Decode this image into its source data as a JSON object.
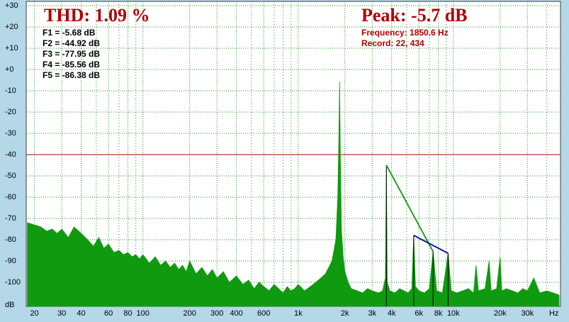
{
  "chart_data": {
    "type": "area",
    "title": "THD: 1.09 %",
    "peak_label": "Peak: -5.7 dB",
    "info": [
      "Frequency: 1850.6 Hz",
      "Record: 22,  434"
    ],
    "y_label": "dB",
    "x_label": "Hz",
    "log_x": true,
    "grid": true,
    "xlim": [
      17.7,
      49000
    ],
    "ylim": [
      -110,
      32
    ],
    "yticks": [
      {
        "value": 30,
        "label": "+30"
      },
      {
        "value": 20,
        "label": "+20"
      },
      {
        "value": 10,
        "label": "+10"
      },
      {
        "value": 0,
        "label": "+0"
      },
      -10,
      -20,
      -30,
      -40,
      -50,
      -60,
      -70,
      -80,
      -90,
      -100
    ],
    "xticks": [
      20,
      30,
      40,
      60,
      80,
      100,
      200,
      300,
      400,
      600,
      {
        "value": 1000,
        "label": "1k"
      },
      {
        "value": 2000,
        "label": "2k"
      },
      {
        "value": 3000,
        "label": "3k"
      },
      {
        "value": 4000,
        "label": "4k"
      },
      {
        "value": 6000,
        "label": "6k"
      },
      {
        "value": 8000,
        "label": "8k"
      },
      {
        "value": 10000,
        "label": "10k"
      },
      {
        "value": 20000,
        "label": "20k"
      },
      {
        "value": 30000,
        "label": "30k"
      }
    ],
    "xminor": [
      50,
      70,
      90,
      500,
      700,
      800,
      900,
      5000,
      7000,
      9000,
      40000
    ],
    "reference_line": -40,
    "reference_color": "#a00000",
    "series": [
      {
        "color": "#109a10",
        "x": [
          18,
          20,
          22,
          24,
          26,
          28,
          30,
          33,
          36,
          40,
          44,
          48,
          52,
          56,
          60,
          65,
          70,
          75,
          80,
          85,
          90,
          95,
          100,
          110,
          120,
          130,
          140,
          150,
          160,
          170,
          180,
          190,
          200,
          220,
          240,
          260,
          280,
          300,
          330,
          360,
          400,
          440,
          480,
          520,
          560,
          600,
          650,
          700,
          750,
          800,
          850,
          900,
          950,
          1000,
          1100,
          1200,
          1300,
          1400,
          1500,
          1600,
          1650,
          1700,
          1750,
          1800,
          1830,
          1850.6,
          1870,
          1900,
          1950,
          2000,
          2100,
          2200,
          2400,
          2600,
          2800,
          3000,
          3300,
          3500,
          3650,
          3701,
          3750,
          3900,
          4200,
          4500,
          4800,
          5100,
          5400,
          5552,
          5700,
          6000,
          6500,
          7000,
          7402,
          7800,
          8500,
          9253,
          9700,
          10500,
          11500,
          12500,
          13500,
          14000,
          14500,
          16000,
          17000,
          17500,
          19000,
          20000,
          20500,
          22000,
          24000,
          26000,
          28000,
          30000,
          33000,
          36000,
          40000,
          44000,
          48000
        ],
        "values": [
          -72,
          -73,
          -74,
          -76,
          -75,
          -77,
          -75,
          -79,
          -74,
          -77,
          -80,
          -83,
          -79,
          -84,
          -82,
          -86,
          -85,
          -87,
          -86,
          -88,
          -87,
          -89,
          -87,
          -91,
          -88,
          -92,
          -90,
          -93,
          -91,
          -94,
          -92,
          -95,
          -90,
          -96,
          -93,
          -97,
          -94,
          -98,
          -95,
          -100,
          -97,
          -101,
          -99,
          -103,
          -100,
          -102,
          -104,
          -101,
          -103,
          -105,
          -102,
          -104,
          -103,
          -101,
          -104,
          -102,
          -100,
          -98,
          -96,
          -92,
          -90,
          -85,
          -80,
          -60,
          -30,
          -5.7,
          -40,
          -75,
          -88,
          -95,
          -100,
          -103,
          -104,
          -105,
          -103,
          -104,
          -105,
          -104,
          -98,
          -44.92,
          -100,
          -104,
          -105,
          -103,
          -104,
          -105,
          -103,
          -77.95,
          -102,
          -104,
          -105,
          -103,
          -85.56,
          -104,
          -105,
          -86.38,
          -104,
          -105,
          -104,
          -103,
          -105,
          -92,
          -104,
          -103,
          -90,
          -104,
          -103,
          -88,
          -104,
          -103,
          -104,
          -105,
          -103,
          -104,
          -98,
          -105,
          -104,
          -105,
          -106
        ]
      }
    ],
    "harmonics": {
      "x": [
        1850.6,
        3701,
        5552,
        7402,
        9253
      ],
      "values": [
        -5.68,
        -44.92,
        -77.95,
        -85.56,
        -86.38
      ],
      "labels": [
        "F1 = -5.68 dB",
        "F2 = -44.92 dB",
        "F3 = -77.95 dB",
        "F4 = -85.56 dB",
        "F5 = -86.38 dB"
      ],
      "colors": [
        "#20a020",
        "#0a1a9a"
      ]
    }
  }
}
